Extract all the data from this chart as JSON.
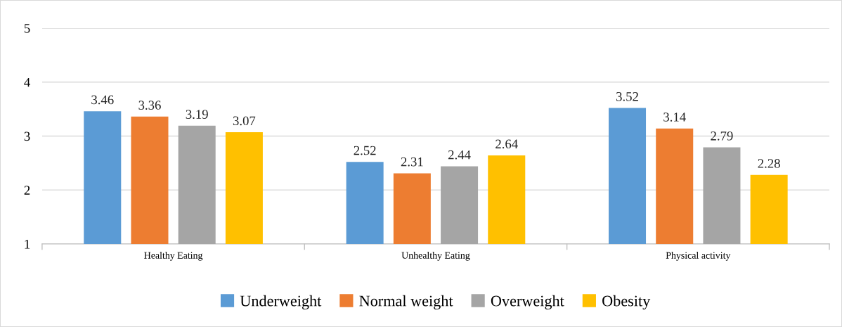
{
  "chart_data": {
    "type": "bar",
    "categories": [
      "Healthy Eating",
      "Unhealthy Eating",
      "Physical activity"
    ],
    "series": [
      {
        "name": "Underweight",
        "color": "#5b9bd5",
        "values": [
          3.46,
          2.52,
          3.52
        ]
      },
      {
        "name": "Normal weight",
        "color": "#ed7d31",
        "values": [
          3.36,
          2.31,
          3.14
        ]
      },
      {
        "name": "Overweight",
        "color": "#a5a5a5",
        "values": [
          3.19,
          2.44,
          2.79
        ]
      },
      {
        "name": "Obesity",
        "color": "#ffc000",
        "values": [
          3.07,
          2.64,
          2.28
        ]
      }
    ],
    "ylim": [
      1,
      5
    ],
    "yticks": [
      1,
      2,
      3,
      4,
      5
    ],
    "grid": "y",
    "legend": "bottom",
    "data_labels": true
  }
}
